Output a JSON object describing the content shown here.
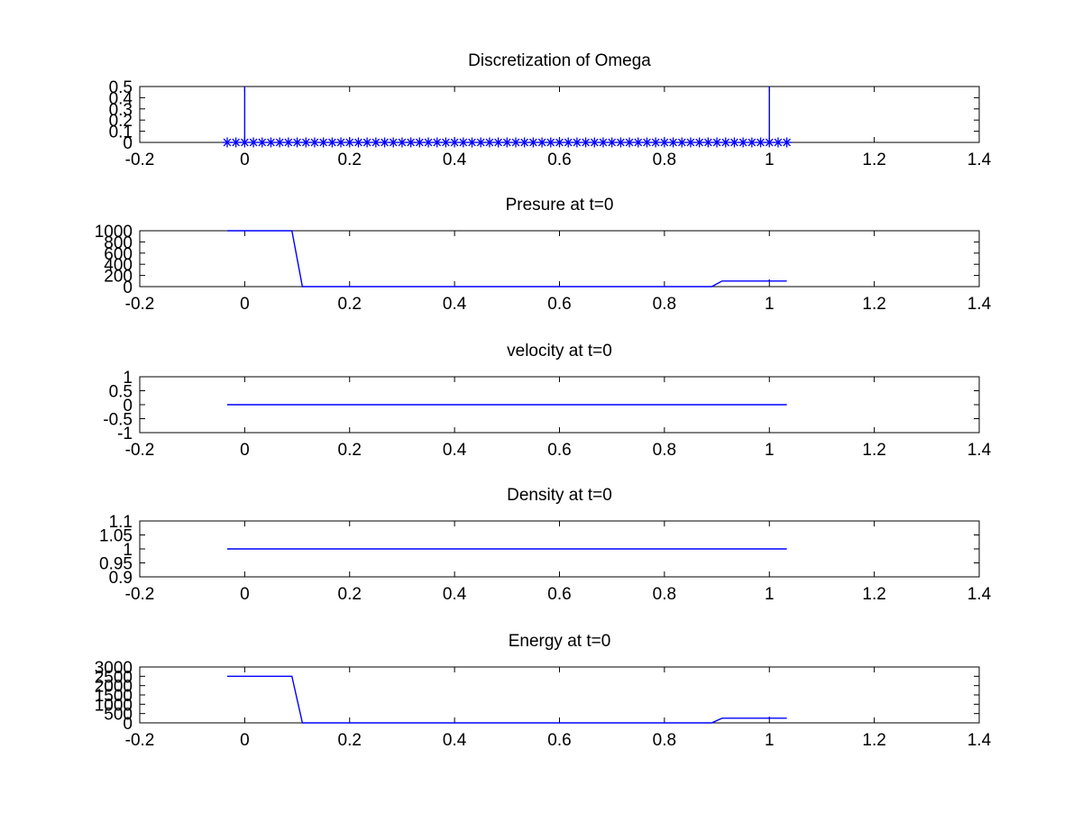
{
  "chart_data": [
    {
      "type": "line",
      "title": "Discretization of Omega",
      "xlim": [
        -0.2,
        1.4
      ],
      "ylim": [
        0,
        0.5
      ],
      "xticks": [
        "-0.2",
        "0",
        "0.2",
        "0.4",
        "0.6",
        "0.8",
        "1",
        "1.2",
        "1.4"
      ],
      "yticks": [
        "0",
        "0.1",
        "0.2",
        "0.3",
        "0.4",
        "0.5"
      ],
      "series": [
        {
          "style": "line",
          "x": [
            0,
            0
          ],
          "y": [
            0,
            0.5
          ]
        },
        {
          "style": "line",
          "x": [
            1,
            1
          ],
          "y": [
            0,
            0.5
          ]
        },
        {
          "style": "star-markers",
          "x": [
            -0.0333,
            -0.0167,
            0,
            0.0167,
            0.0333,
            0.05,
            0.0667,
            0.0833,
            0.1,
            0.1167,
            0.1333,
            0.15,
            0.1667,
            0.1833,
            0.2,
            0.2167,
            0.2333,
            0.25,
            0.2667,
            0.2833,
            0.3,
            0.3167,
            0.3333,
            0.35,
            0.3667,
            0.3833,
            0.4,
            0.4167,
            0.4333,
            0.45,
            0.4667,
            0.4833,
            0.5,
            0.5167,
            0.5333,
            0.55,
            0.5667,
            0.5833,
            0.6,
            0.6167,
            0.6333,
            0.65,
            0.6667,
            0.6833,
            0.7,
            0.7167,
            0.7333,
            0.75,
            0.7667,
            0.7833,
            0.8,
            0.8167,
            0.8333,
            0.85,
            0.8667,
            0.8833,
            0.9,
            0.9167,
            0.9333,
            0.95,
            0.9667,
            0.9833,
            1,
            1.0167,
            1.0333
          ],
          "y": [
            0,
            0,
            0,
            0,
            0,
            0,
            0,
            0,
            0,
            0,
            0,
            0,
            0,
            0,
            0,
            0,
            0,
            0,
            0,
            0,
            0,
            0,
            0,
            0,
            0,
            0,
            0,
            0,
            0,
            0,
            0,
            0,
            0,
            0,
            0,
            0,
            0,
            0,
            0,
            0,
            0,
            0,
            0,
            0,
            0,
            0,
            0,
            0,
            0,
            0,
            0,
            0,
            0,
            0,
            0,
            0,
            0,
            0,
            0,
            0,
            0,
            0,
            0,
            0,
            0
          ]
        }
      ]
    },
    {
      "type": "line",
      "title": "Presure at t=0",
      "xlim": [
        -0.2,
        1.4
      ],
      "ylim": [
        0,
        1000
      ],
      "xticks": [
        "-0.2",
        "0",
        "0.2",
        "0.4",
        "0.6",
        "0.8",
        "1",
        "1.2",
        "1.4"
      ],
      "yticks": [
        "0",
        "200",
        "400",
        "600",
        "800",
        "1000"
      ],
      "series": [
        {
          "style": "line",
          "x": [
            -0.0333,
            0.09,
            0.11,
            0.89,
            0.91,
            1.0333
          ],
          "y": [
            1000,
            1000,
            0.01,
            0.01,
            100,
            100
          ]
        },
        {
          "style": "line",
          "x": [
            1,
            1
          ],
          "y": [
            90,
            130
          ]
        }
      ]
    },
    {
      "type": "line",
      "title": "velocity at t=0",
      "xlim": [
        -0.2,
        1.4
      ],
      "ylim": [
        -1,
        1
      ],
      "xticks": [
        "-0.2",
        "0",
        "0.2",
        "0.4",
        "0.6",
        "0.8",
        "1",
        "1.2",
        "1.4"
      ],
      "yticks": [
        "-1",
        "-0.5",
        "0",
        "0.5",
        "1"
      ],
      "series": [
        {
          "style": "line",
          "x": [
            -0.0333,
            1.0333
          ],
          "y": [
            0,
            0
          ]
        }
      ]
    },
    {
      "type": "line",
      "title": "Density at t=0",
      "xlim": [
        -0.2,
        1.4
      ],
      "ylim": [
        0.9,
        1.1
      ],
      "xticks": [
        "-0.2",
        "0",
        "0.2",
        "0.4",
        "0.6",
        "0.8",
        "1",
        "1.2",
        "1.4"
      ],
      "yticks": [
        "0.9",
        "0.95",
        "1",
        "1.05",
        "1.1"
      ],
      "series": [
        {
          "style": "line",
          "x": [
            -0.0333,
            1.0333
          ],
          "y": [
            1,
            1
          ]
        }
      ]
    },
    {
      "type": "line",
      "title": "Energy at t=0",
      "xlim": [
        -0.2,
        1.4
      ],
      "ylim": [
        0,
        3000
      ],
      "xticks": [
        "-0.2",
        "0",
        "0.2",
        "0.4",
        "0.6",
        "0.8",
        "1",
        "1.2",
        "1.4"
      ],
      "yticks": [
        "0",
        "500",
        "1000",
        "1500",
        "2000",
        "2500",
        "3000"
      ],
      "series": [
        {
          "style": "line",
          "x": [
            -0.0333,
            0.09,
            0.11,
            0.89,
            0.91,
            1.0333
          ],
          "y": [
            2500,
            2500,
            0.025,
            0.025,
            250,
            250
          ]
        },
        {
          "style": "line",
          "x": [
            1,
            1
          ],
          "y": [
            200,
            330
          ]
        }
      ]
    }
  ],
  "colors": {
    "series_line": "#0000ff",
    "markers": "#0000ff",
    "axes": "#000000",
    "background": "#ffffff"
  }
}
